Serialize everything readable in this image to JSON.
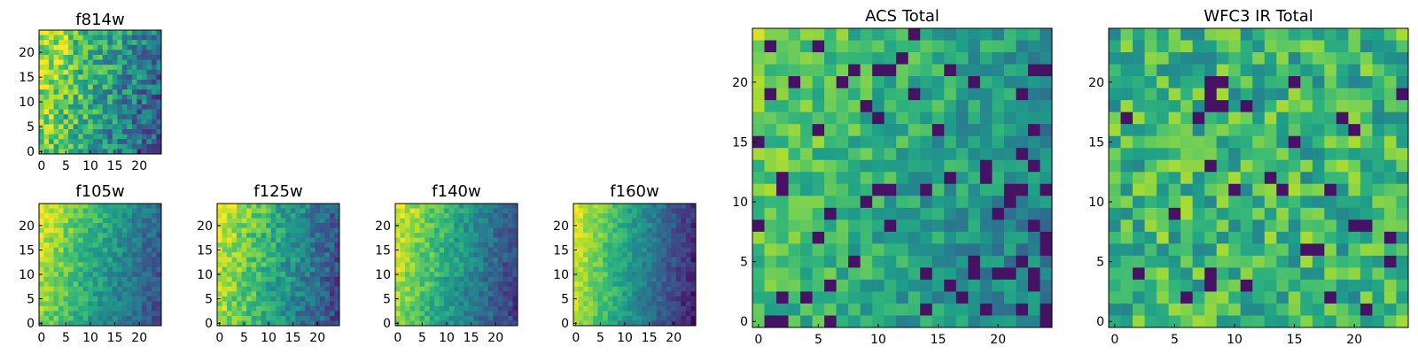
{
  "chart_data": [
    {
      "type": "heatmap",
      "title": "f814w",
      "xticks": [
        0,
        5,
        10,
        15,
        20
      ],
      "yticks": [
        0,
        5,
        10,
        15,
        20
      ],
      "xlim": [
        0,
        25
      ],
      "ylim": [
        0,
        25
      ],
      "grid_size": 25,
      "colormap": "viridis",
      "value_range": [
        0,
        1
      ],
      "model": "bright yellow upper-left, darkening toward right edge, fine per-pixel noise"
    },
    {
      "type": "heatmap",
      "title": "f105w",
      "xticks": [
        0,
        5,
        10,
        15,
        20
      ],
      "yticks": [
        0,
        5,
        10,
        15,
        20
      ],
      "xlim": [
        0,
        25
      ],
      "ylim": [
        0,
        25
      ],
      "grid_size": 25,
      "colormap": "viridis",
      "value_range": [
        0,
        1
      ],
      "model": "bright yellow upper-left, darkening toward right edge, smooth gradient"
    },
    {
      "type": "heatmap",
      "title": "f125w",
      "xticks": [
        0,
        5,
        10,
        15,
        20
      ],
      "yticks": [
        0,
        5,
        10,
        15,
        20
      ],
      "xlim": [
        0,
        25
      ],
      "ylim": [
        0,
        25
      ],
      "grid_size": 25,
      "colormap": "viridis",
      "value_range": [
        0,
        1
      ],
      "model": "bright yellow left side, darkening toward right edge"
    },
    {
      "type": "heatmap",
      "title": "f140w",
      "xticks": [
        0,
        5,
        10,
        15,
        20
      ],
      "yticks": [
        0,
        5,
        10,
        15,
        20
      ],
      "xlim": [
        0,
        25
      ],
      "ylim": [
        0,
        25
      ],
      "grid_size": 25,
      "colormap": "viridis",
      "value_range": [
        0,
        1
      ],
      "model": "bright yellow upper-left, darkening toward right edge"
    },
    {
      "type": "heatmap",
      "title": "f160w",
      "xticks": [
        0,
        5,
        10,
        15,
        20
      ],
      "yticks": [
        0,
        5,
        10,
        15,
        20
      ],
      "xlim": [
        0,
        25
      ],
      "ylim": [
        0,
        25
      ],
      "grid_size": 25,
      "colormap": "viridis",
      "value_range": [
        0,
        1
      ],
      "model": "bright yellow upper-left, dark blue-purple on right edge"
    },
    {
      "type": "heatmap",
      "title": "ACS Total",
      "xticks": [
        0,
        5,
        10,
        15,
        20
      ],
      "yticks": [
        0,
        5,
        10,
        15,
        20
      ],
      "xlim": [
        0,
        25
      ],
      "ylim": [
        0,
        25
      ],
      "grid_size": 25,
      "colormap": "viridis",
      "value_range": [
        0,
        1
      ],
      "model": "yellow-green upper-left, scattered dark-purple pixels toward right"
    },
    {
      "type": "heatmap",
      "title": "WFC3 IR Total",
      "xticks": [
        0,
        5,
        10,
        15,
        20
      ],
      "yticks": [
        0,
        5,
        10,
        15,
        20
      ],
      "xlim": [
        0,
        25
      ],
      "ylim": [
        0,
        25
      ],
      "grid_size": 25,
      "colormap": "viridis",
      "value_range": [
        0,
        1
      ],
      "model": "mostly green with yellow patches, scattered dark-purple pixels"
    }
  ]
}
